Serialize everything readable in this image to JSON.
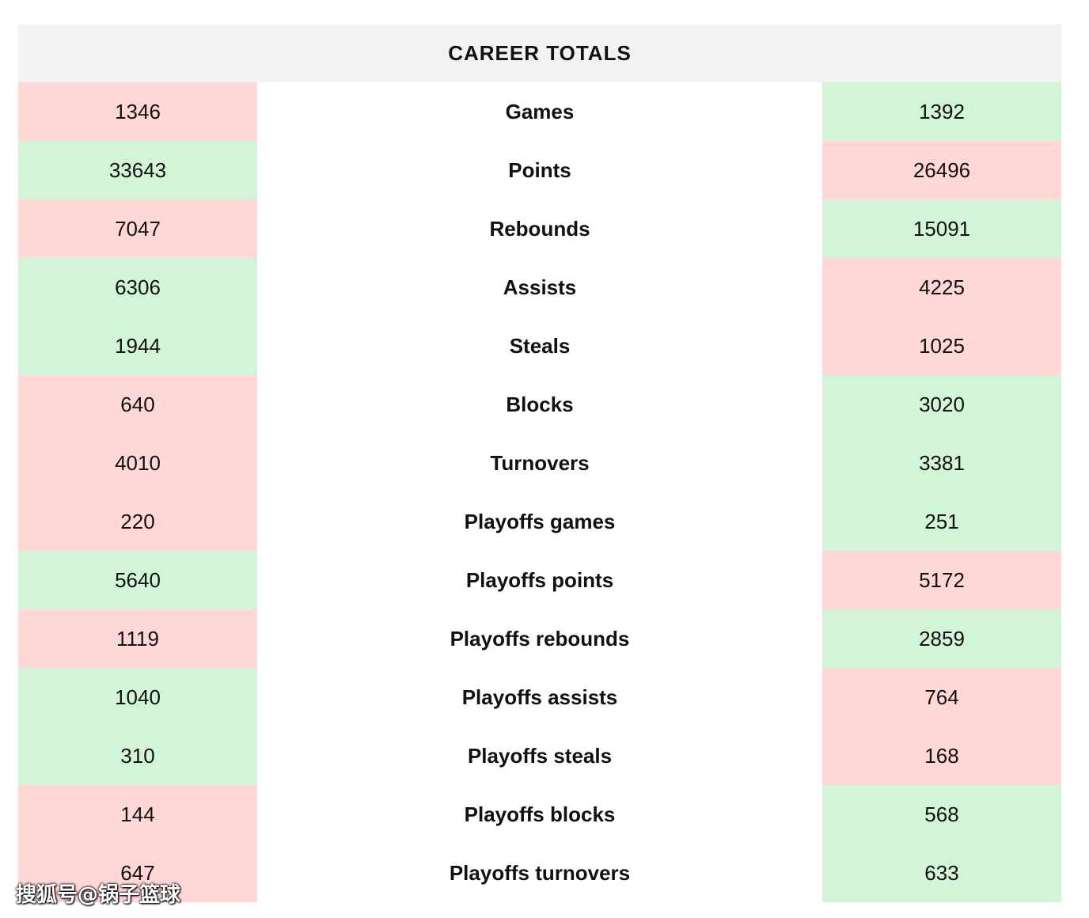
{
  "title": "CAREER TOTALS",
  "colors": {
    "lower": "#ffd7d7",
    "higher": "#d2f5d8"
  },
  "rows": [
    {
      "label": "Games",
      "left": "1346",
      "right": "1392",
      "left_status": "red",
      "right_status": "green"
    },
    {
      "label": "Points",
      "left": "33643",
      "right": "26496",
      "left_status": "green",
      "right_status": "red"
    },
    {
      "label": "Rebounds",
      "left": "7047",
      "right": "15091",
      "left_status": "red",
      "right_status": "green"
    },
    {
      "label": "Assists",
      "left": "6306",
      "right": "4225",
      "left_status": "green",
      "right_status": "red"
    },
    {
      "label": "Steals",
      "left": "1944",
      "right": "1025",
      "left_status": "green",
      "right_status": "red"
    },
    {
      "label": "Blocks",
      "left": "640",
      "right": "3020",
      "left_status": "red",
      "right_status": "green"
    },
    {
      "label": "Turnovers",
      "left": "4010",
      "right": "3381",
      "left_status": "red",
      "right_status": "green"
    },
    {
      "label": "Playoffs games",
      "left": "220",
      "right": "251",
      "left_status": "red",
      "right_status": "green"
    },
    {
      "label": "Playoffs points",
      "left": "5640",
      "right": "5172",
      "left_status": "green",
      "right_status": "red"
    },
    {
      "label": "Playoffs rebounds",
      "left": "1119",
      "right": "2859",
      "left_status": "red",
      "right_status": "green"
    },
    {
      "label": "Playoffs assists",
      "left": "1040",
      "right": "764",
      "left_status": "green",
      "right_status": "red"
    },
    {
      "label": "Playoffs steals",
      "left": "310",
      "right": "168",
      "left_status": "green",
      "right_status": "red"
    },
    {
      "label": "Playoffs blocks",
      "left": "144",
      "right": "568",
      "left_status": "red",
      "right_status": "green"
    },
    {
      "label": "Playoffs turnovers",
      "left": "647",
      "right": "633",
      "left_status": "red",
      "right_status": "green"
    }
  ],
  "watermark": "搜狐号@锅子篮球"
}
